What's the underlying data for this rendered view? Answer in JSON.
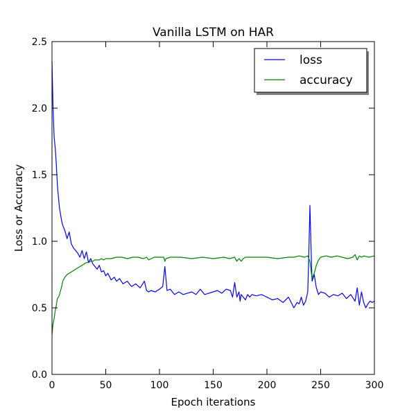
{
  "chart_data": {
    "type": "line",
    "title": "Vanilla LSTM on HAR",
    "xlabel": "Epoch iterations",
    "ylabel": "Loss or Accuracy",
    "xlim": [
      0,
      300
    ],
    "ylim": [
      0.0,
      2.5
    ],
    "xticks": [
      0,
      50,
      100,
      150,
      200,
      250,
      300
    ],
    "yticks": [
      0.0,
      0.5,
      1.0,
      1.5,
      2.0,
      2.5
    ],
    "xtick_labels": [
      "0",
      "50",
      "100",
      "150",
      "200",
      "250",
      "300"
    ],
    "ytick_labels": [
      "0.0",
      "0.5",
      "1.0",
      "1.5",
      "2.0",
      "2.5"
    ],
    "grid": false,
    "legend_position": "top-right",
    "series": [
      {
        "name": "loss",
        "color": "#0000ff",
        "x": [
          0,
          1,
          2,
          3,
          4,
          5,
          6,
          7,
          8,
          9,
          10,
          12,
          14,
          16,
          18,
          20,
          22,
          24,
          26,
          28,
          30,
          32,
          34,
          36,
          38,
          40,
          42,
          44,
          46,
          48,
          50,
          52,
          55,
          58,
          60,
          63,
          66,
          70,
          74,
          78,
          82,
          86,
          88,
          90,
          92,
          96,
          100,
          103,
          105,
          107,
          110,
          114,
          118,
          122,
          126,
          130,
          134,
          138,
          142,
          146,
          150,
          154,
          158,
          162,
          166,
          168,
          170,
          172,
          174,
          175,
          176,
          178,
          180,
          182,
          184,
          186,
          190,
          195,
          200,
          205,
          210,
          215,
          220,
          222,
          225,
          228,
          230,
          232,
          234,
          236,
          238,
          239,
          240,
          241,
          242,
          244,
          246,
          248,
          250,
          254,
          258,
          262,
          266,
          270,
          274,
          278,
          282,
          284,
          286,
          288,
          290,
          292,
          294,
          296,
          298,
          300
        ],
        "y": [
          2.35,
          2.0,
          1.78,
          1.7,
          1.58,
          1.42,
          1.33,
          1.25,
          1.2,
          1.15,
          1.12,
          1.08,
          1.02,
          1.07,
          0.98,
          0.95,
          0.93,
          0.91,
          0.88,
          0.93,
          0.87,
          0.92,
          0.84,
          0.87,
          0.83,
          0.81,
          0.79,
          0.82,
          0.77,
          0.78,
          0.74,
          0.76,
          0.71,
          0.73,
          0.7,
          0.72,
          0.68,
          0.7,
          0.66,
          0.68,
          0.65,
          0.7,
          0.63,
          0.62,
          0.63,
          0.62,
          0.64,
          0.66,
          0.81,
          0.63,
          0.64,
          0.6,
          0.62,
          0.6,
          0.61,
          0.62,
          0.6,
          0.64,
          0.6,
          0.61,
          0.62,
          0.63,
          0.61,
          0.64,
          0.63,
          0.58,
          0.69,
          0.58,
          0.62,
          0.55,
          0.6,
          0.58,
          0.56,
          0.6,
          0.58,
          0.6,
          0.59,
          0.6,
          0.58,
          0.56,
          0.57,
          0.54,
          0.58,
          0.55,
          0.5,
          0.54,
          0.53,
          0.58,
          0.52,
          0.55,
          0.62,
          0.9,
          1.27,
          0.95,
          0.7,
          0.75,
          0.65,
          0.6,
          0.62,
          0.61,
          0.58,
          0.6,
          0.59,
          0.61,
          0.57,
          0.6,
          0.55,
          0.65,
          0.52,
          0.62,
          0.54,
          0.5,
          0.53,
          0.55,
          0.54,
          0.55
        ]
      },
      {
        "name": "accuracy",
        "color": "#008000",
        "x": [
          0,
          1,
          2,
          3,
          4,
          5,
          6,
          7,
          8,
          9,
          10,
          12,
          14,
          16,
          18,
          20,
          22,
          24,
          26,
          28,
          30,
          32,
          34,
          36,
          38,
          40,
          42,
          44,
          46,
          48,
          50,
          55,
          60,
          65,
          70,
          75,
          80,
          85,
          88,
          90,
          95,
          100,
          104,
          105,
          106,
          110,
          120,
          130,
          140,
          150,
          160,
          165,
          170,
          172,
          174,
          176,
          178,
          180,
          190,
          200,
          210,
          220,
          225,
          230,
          235,
          238,
          240,
          241,
          242,
          244,
          246,
          248,
          250,
          255,
          260,
          265,
          270,
          275,
          280,
          282,
          284,
          286,
          288,
          290,
          295,
          300
        ],
        "y": [
          0.3,
          0.38,
          0.42,
          0.48,
          0.52,
          0.57,
          0.58,
          0.6,
          0.63,
          0.66,
          0.7,
          0.73,
          0.75,
          0.76,
          0.77,
          0.78,
          0.79,
          0.8,
          0.81,
          0.82,
          0.83,
          0.84,
          0.84,
          0.85,
          0.85,
          0.86,
          0.86,
          0.86,
          0.87,
          0.86,
          0.87,
          0.87,
          0.88,
          0.88,
          0.87,
          0.88,
          0.88,
          0.87,
          0.88,
          0.86,
          0.88,
          0.88,
          0.88,
          0.85,
          0.87,
          0.88,
          0.88,
          0.87,
          0.88,
          0.87,
          0.88,
          0.87,
          0.88,
          0.85,
          0.87,
          0.85,
          0.87,
          0.88,
          0.88,
          0.88,
          0.87,
          0.88,
          0.88,
          0.89,
          0.88,
          0.89,
          0.85,
          0.78,
          0.72,
          0.76,
          0.82,
          0.86,
          0.88,
          0.89,
          0.88,
          0.89,
          0.88,
          0.87,
          0.88,
          0.9,
          0.86,
          0.89,
          0.88,
          0.89,
          0.88,
          0.89
        ]
      }
    ]
  }
}
